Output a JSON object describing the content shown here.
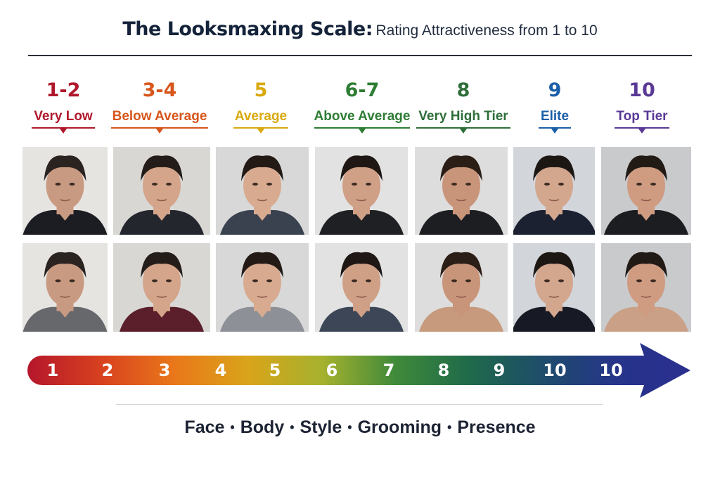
{
  "title": {
    "main": "The Looksmaxing Scale:",
    "sub": "Rating Attractiveness from 1 to 10"
  },
  "tiers": [
    {
      "score": "1-2",
      "label": "Very Low",
      "color": "#b0182c"
    },
    {
      "score": "3-4",
      "label": "Below Average",
      "color": "#d7561c"
    },
    {
      "score": "5",
      "label": "Average",
      "color": "#d9a90f"
    },
    {
      "score": "6-7",
      "label": "Above Average",
      "color": "#2e7d34"
    },
    {
      "score": "8",
      "label": "Very High Tier",
      "color": "#2e6e3a"
    },
    {
      "score": "9",
      "label": "Elite",
      "color": "#1b5fa8"
    },
    {
      "score": "10",
      "label": "Top Tier",
      "color": "#5a3a96"
    }
  ],
  "portraits": {
    "rows": 2,
    "columns": 7,
    "background_colors": [
      "#e6e4e1",
      "#d9d7d4",
      "#d8d8d8",
      "#e2e2e2",
      "#dddddd",
      "#d2d5da",
      "#c9cacc"
    ],
    "shirt_colors_row1": [
      "#1c1d22",
      "#23262c",
      "#3a4250",
      "#1e2024",
      "#1d1e22",
      "#1b2130",
      "#1c1d20"
    ],
    "shirt_colors_row2": [
      "#66686c",
      "#5a1f2a",
      "#8d9096",
      "#3c4656",
      "#c79a7d",
      "#171a24",
      "#caa087"
    ]
  },
  "scale_bar": {
    "numbers": [
      "1",
      "2",
      "3",
      "4",
      "5",
      "6",
      "7",
      "8",
      "9",
      "10",
      "10"
    ],
    "gradient_colors": [
      "#b5172b",
      "#d8411f",
      "#e9781a",
      "#d9a41a",
      "#a6b12e",
      "#3f8a3a",
      "#1f6a4a",
      "#1e4c6b",
      "#26348a",
      "#2a2f8f"
    ]
  },
  "footer": {
    "items": [
      "Face",
      "Body",
      "Style",
      "Grooming",
      "Presence"
    ],
    "separator": "•"
  }
}
